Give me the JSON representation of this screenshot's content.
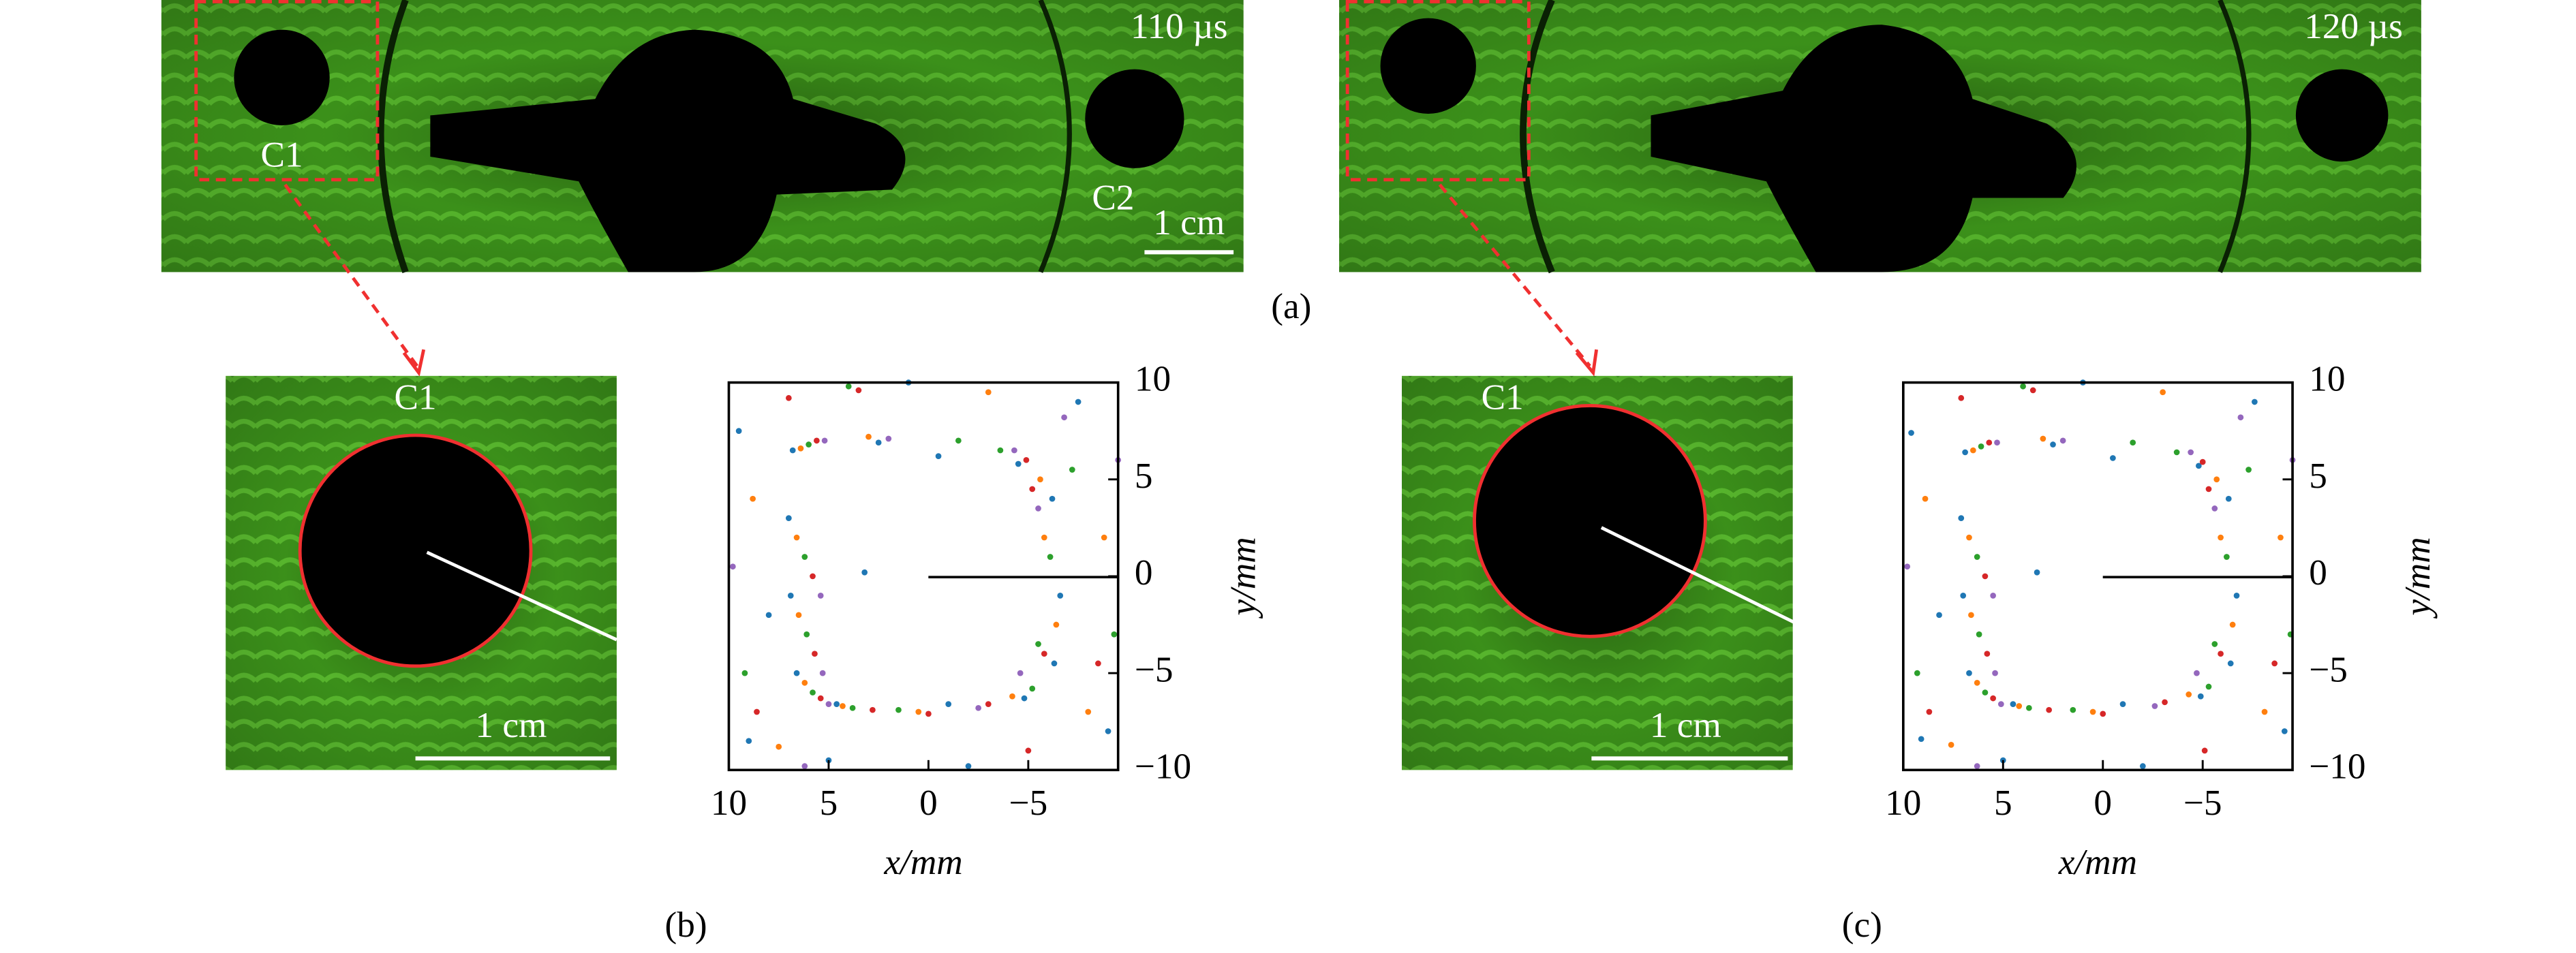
{
  "figure": {
    "panel_a": {
      "label": "(a)",
      "left": {
        "time": "110 µs",
        "c1": "C1",
        "c2": "C2",
        "scale": "1 cm"
      },
      "right": {
        "time": "120 µs"
      }
    },
    "panel_b": {
      "label": "(b)",
      "photo": {
        "c1": "C1",
        "scale": "1 cm"
      }
    },
    "panel_c": {
      "label": "(c)",
      "photo": {
        "c1": "C1",
        "scale": "1 cm"
      }
    }
  },
  "chart_data": [
    {
      "type": "scatter",
      "xlabel": "x/mm",
      "ylabel": "y/mm",
      "xlim": [
        10,
        -9.5
      ],
      "ylim": [
        -10,
        10
      ],
      "xticks": [
        10,
        5,
        0,
        {
          "value": -5,
          "label": "−5"
        }
      ],
      "yticks": [
        10,
        5,
        0,
        {
          "value": -5,
          "label": "−5"
        },
        {
          "value": -10,
          "label": "−10"
        }
      ],
      "series": [
        {
          "color": "#1f77b4",
          "x": [
            6.8,
            7.0,
            6.9,
            6.6,
            4.6,
            3.2,
            -0.5,
            -4.5,
            -6.2,
            -6.6,
            -6.3,
            -4.8,
            -1,
            2.5,
            9.5,
            8,
            -7.5,
            -9,
            1,
            -2,
            5,
            9
          ],
          "y": [
            6.5,
            3,
            -1,
            -5,
            -6.6,
            0.2,
            6.2,
            5.8,
            4,
            -1,
            -4.5,
            -6.3,
            -6.6,
            6.9,
            7.5,
            -2,
            9,
            -8,
            10,
            -9.8,
            -9.5,
            -8.5
          ]
        },
        {
          "color": "#ff7f0e",
          "x": [
            6.4,
            6.6,
            6.5,
            6.2,
            4.3,
            -4.2,
            -5.8,
            -6.4,
            -5.6,
            0.5,
            3,
            8.8,
            -8,
            -3,
            7.5,
            -8.8
          ],
          "y": [
            6.6,
            2,
            -2,
            -5.5,
            -6.7,
            -6.2,
            2,
            -2.5,
            5,
            -7,
            7.2,
            4,
            -7,
            9.5,
            -8.8,
            2
          ]
        },
        {
          "color": "#2ca02c",
          "x": [
            6.0,
            6.2,
            6.1,
            5.8,
            3.8,
            -3.6,
            -5.5,
            -6.1,
            -5.2,
            1.5,
            -1.5,
            9.2,
            -7.2,
            4,
            -9.3
          ],
          "y": [
            6.8,
            1,
            -3,
            -6,
            -6.8,
            6.5,
            -3.5,
            1,
            -5.8,
            -6.9,
            7.0,
            -5,
            5.5,
            9.8,
            -3
          ]
        },
        {
          "color": "#d62728",
          "x": [
            5.6,
            5.8,
            5.7,
            5.4,
            2.8,
            -3,
            -5.2,
            -5.8,
            -4.9,
            0,
            7,
            -8.5,
            -5,
            8.6,
            3.5
          ],
          "y": [
            7.0,
            0,
            -4,
            -6.3,
            -6.9,
            -6.6,
            4.5,
            -4,
            6,
            -7.1,
            9.2,
            -4.5,
            -9,
            -7,
            9.6
          ]
        },
        {
          "color": "#9467bd",
          "x": [
            5.2,
            5.4,
            5.3,
            5.0,
            2,
            -2.5,
            -4.6,
            -5.5,
            -4.3,
            9.8,
            -9.5,
            6.2,
            -6.8
          ],
          "y": [
            7.0,
            -1,
            -5,
            -6.6,
            7.1,
            -6.8,
            -5,
            3.5,
            6.5,
            0.5,
            6,
            -9.8,
            8.2
          ]
        }
      ]
    },
    {
      "type": "scatter",
      "xlabel": "x/mm",
      "ylabel": "y/mm",
      "xlim": [
        10,
        -9.5
      ],
      "ylim": [
        -10,
        10
      ],
      "xticks": [
        10,
        5,
        0,
        {
          "value": -5,
          "label": "−5"
        }
      ],
      "yticks": [
        10,
        5,
        0,
        {
          "value": -5,
          "label": "−5"
        },
        {
          "value": -10,
          "label": "−10"
        }
      ],
      "series": [
        {
          "color": "#1f77b4",
          "x": [
            6.9,
            7.1,
            7.0,
            6.7,
            4.5,
            3.3,
            -0.5,
            -4.8,
            -6.3,
            -6.7,
            -6.4,
            -4.9,
            -1,
            2.5,
            9.6,
            8.2,
            -7.6,
            -9.1,
            1,
            -2,
            5,
            9.1
          ],
          "y": [
            6.4,
            3,
            -1,
            -5,
            -6.6,
            0.2,
            6.1,
            5.7,
            4,
            -1,
            -4.5,
            -6.2,
            -6.6,
            6.8,
            7.4,
            -2,
            9,
            -8,
            10,
            -9.8,
            -9.5,
            -8.4
          ]
        },
        {
          "color": "#ff7f0e",
          "x": [
            6.5,
            6.7,
            6.6,
            6.3,
            4.2,
            -4.3,
            -5.9,
            -6.5,
            -5.7,
            0.5,
            3,
            8.9,
            -8.1,
            -3,
            7.6,
            -8.9
          ],
          "y": [
            6.5,
            2,
            -2,
            -5.5,
            -6.7,
            -6.1,
            2,
            -2.5,
            5,
            -7,
            7.1,
            4,
            -7,
            9.5,
            -8.7,
            2
          ]
        },
        {
          "color": "#2ca02c",
          "x": [
            6.1,
            6.3,
            6.2,
            5.9,
            3.7,
            -3.7,
            -5.6,
            -6.2,
            -5.3,
            1.5,
            -1.5,
            9.3,
            -7.3,
            4,
            -9.4
          ],
          "y": [
            6.7,
            1,
            -3,
            -6,
            -6.8,
            6.4,
            -3.5,
            1,
            -5.7,
            -6.9,
            6.9,
            -5,
            5.5,
            9.8,
            -3
          ]
        },
        {
          "color": "#d62728",
          "x": [
            5.7,
            5.9,
            5.8,
            5.5,
            2.7,
            -3.1,
            -5.3,
            -5.9,
            -5.0,
            0,
            7.1,
            -8.6,
            -5.1,
            8.7,
            3.5
          ],
          "y": [
            6.9,
            0,
            -4,
            -6.3,
            -6.9,
            -6.5,
            4.5,
            -4,
            5.9,
            -7.1,
            9.2,
            -4.5,
            -9,
            -7,
            9.6
          ]
        },
        {
          "color": "#9467bd",
          "x": [
            5.3,
            5.5,
            5.4,
            5.1,
            2,
            -2.6,
            -4.7,
            -5.6,
            -4.4,
            9.8,
            -9.5,
            6.3,
            -6.9
          ],
          "y": [
            6.9,
            -1,
            -5,
            -6.6,
            7.0,
            -6.7,
            -5,
            3.5,
            6.4,
            0.5,
            6,
            -9.8,
            8.2
          ]
        }
      ]
    }
  ]
}
